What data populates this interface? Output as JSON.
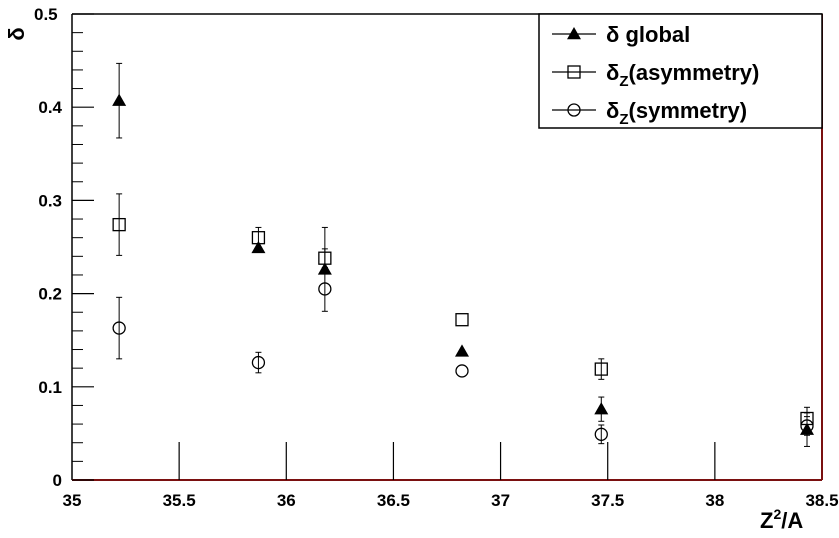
{
  "chart_data": {
    "type": "scatter",
    "xlabel_base": "Z",
    "xlabel_sup": "2",
    "xlabel_tail": "/A",
    "ylabel": "δ",
    "xlim": [
      35,
      38.5
    ],
    "ylim": [
      0,
      0.5
    ],
    "x_ticks": [
      {
        "value": 35,
        "label": "35"
      },
      {
        "value": 35.5,
        "label": "35.5"
      },
      {
        "value": 36,
        "label": "36"
      },
      {
        "value": 36.5,
        "label": "36.5"
      },
      {
        "value": 37,
        "label": "37"
      },
      {
        "value": 37.5,
        "label": "37.5"
      },
      {
        "value": 38,
        "label": "38"
      },
      {
        "value": 38.5,
        "label": "38.5"
      }
    ],
    "y_ticks": [
      {
        "value": 0,
        "label": "0"
      },
      {
        "value": 0.1,
        "label": "0.1"
      },
      {
        "value": 0.2,
        "label": "0.2"
      },
      {
        "value": 0.3,
        "label": "0.3"
      },
      {
        "value": 0.4,
        "label": "0.4"
      },
      {
        "value": 0.5,
        "label": "0.5"
      }
    ],
    "legend_position": "top-right",
    "series": [
      {
        "name_base": "δ",
        "name_sub": "",
        "name_tail": " global",
        "marker": "filled-triangle",
        "points": [
          {
            "x": 35.22,
            "y": 0.407,
            "err": 0.04
          },
          {
            "x": 35.87,
            "y": 0.249,
            "err": 0.0
          },
          {
            "x": 36.18,
            "y": 0.226,
            "err": 0.045
          },
          {
            "x": 36.82,
            "y": 0.138,
            "err": 0.0
          },
          {
            "x": 37.47,
            "y": 0.076,
            "err": 0.013
          },
          {
            "x": 38.43,
            "y": 0.054,
            "err": 0.018
          }
        ]
      },
      {
        "name_base": "δ",
        "name_sub": "Z",
        "name_tail": "(asymmetry)",
        "marker": "open-square",
        "points": [
          {
            "x": 35.22,
            "y": 0.274,
            "err": 0.033
          },
          {
            "x": 35.87,
            "y": 0.26,
            "err": 0.011
          },
          {
            "x": 36.18,
            "y": 0.238,
            "err": 0.01
          },
          {
            "x": 36.82,
            "y": 0.172,
            "err": 0.0
          },
          {
            "x": 37.47,
            "y": 0.119,
            "err": 0.011
          },
          {
            "x": 38.43,
            "y": 0.066,
            "err": 0.012
          }
        ]
      },
      {
        "name_base": "δ",
        "name_sub": "Z",
        "name_tail": "(symmetry)",
        "marker": "open-circle",
        "points": [
          {
            "x": 35.22,
            "y": 0.163,
            "err": 0.033
          },
          {
            "x": 35.87,
            "y": 0.126,
            "err": 0.011
          },
          {
            "x": 36.18,
            "y": 0.205,
            "err": 0.0
          },
          {
            "x": 36.82,
            "y": 0.117,
            "err": 0.0
          },
          {
            "x": 37.47,
            "y": 0.049,
            "err": 0.01
          },
          {
            "x": 38.43,
            "y": 0.058,
            "err": 0.01
          }
        ]
      }
    ]
  }
}
